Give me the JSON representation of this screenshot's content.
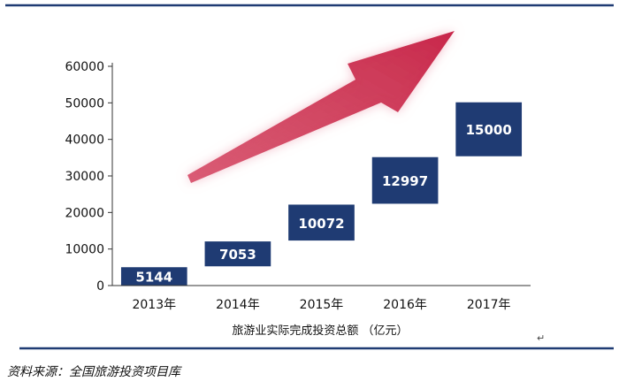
{
  "chart_data": {
    "type": "bar",
    "categories": [
      "2013年",
      "2014年",
      "2015年",
      "2016年",
      "2017年"
    ],
    "values": [
      5144,
      7053,
      10072,
      12997,
      15000
    ],
    "baselines": [
      0,
      5144,
      12197,
      22269,
      35266
    ],
    "data_labels": [
      "5144",
      "7053",
      "10072",
      "12997",
      "15000"
    ],
    "xlabel": "旅游业实际完成投资总额 （亿元）",
    "ylabel": "",
    "ylim": [
      0,
      60000
    ],
    "yticks": [
      0,
      10000,
      20000,
      30000,
      40000,
      50000,
      60000
    ],
    "grid": false,
    "bar_color": "#1f3b73",
    "trend_arrow_color": "#d43a5c"
  },
  "source_text": "资料来源：全国旅游投资项目库",
  "return_mark": "↵",
  "rule_color": "#1f3b73"
}
